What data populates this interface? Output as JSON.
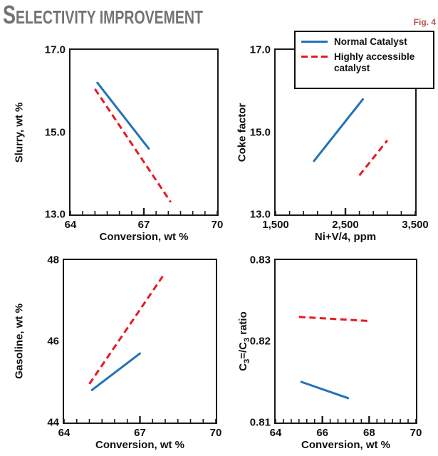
{
  "header": {
    "title_first_letter": "S",
    "title_rest": "ELECTIVITY IMPROVEMENT",
    "title_full": "Selectivity improvement",
    "fig_label": "Fig. 4"
  },
  "legend": {
    "position": "top-right",
    "items": [
      {
        "label": "Normal Catalyst",
        "line_style": "solid",
        "color": "#2273b9"
      },
      {
        "label": "Highly accessible catalyst",
        "line_style": "dashed",
        "color": "#e8191f"
      }
    ]
  },
  "colors": {
    "normal_catalyst": "#2273b9",
    "accessible_catalyst": "#e8191f",
    "axis": "#1a1a1a",
    "title_gray": "#737373",
    "fig_label_red": "#b5544c"
  },
  "chart_data": [
    {
      "type": "line",
      "title": "",
      "ylabel": "Slurry, wt %",
      "xlabel": "Conversion, wt %",
      "xlim": [
        64,
        70
      ],
      "ylim": [
        13.0,
        17.0
      ],
      "grid": false,
      "xticks": [
        {
          "v": 64,
          "label": "64"
        },
        {
          "v": 67,
          "label": "67"
        },
        {
          "v": 70,
          "label": "70"
        }
      ],
      "yticks": [
        {
          "v": 17.0,
          "label": "17.0"
        },
        {
          "v": 15.0,
          "label": "15.0"
        },
        {
          "v": 13.0,
          "label": "13.0"
        }
      ],
      "minor_x_step": 0.5,
      "major_interior_xticks": [
        67
      ],
      "series": [
        {
          "name": "Normal Catalyst",
          "style": "solid",
          "color": "#2273b9",
          "points": [
            [
              65.1,
              16.2
            ],
            [
              67.2,
              14.6
            ]
          ]
        },
        {
          "name": "Highly accessible catalyst",
          "style": "dashed",
          "color": "#e8191f",
          "points": [
            [
              65.0,
              16.05
            ],
            [
              68.1,
              13.3
            ]
          ]
        }
      ]
    },
    {
      "type": "line",
      "title": "",
      "ylabel": "Coke factor",
      "xlabel": "Ni+V/4, ppm",
      "xlim": [
        1500,
        3500
      ],
      "ylim": [
        13.0,
        17.0
      ],
      "grid": false,
      "xticks": [
        {
          "v": 1500,
          "label": "1,500"
        },
        {
          "v": 2500,
          "label": "2,500"
        },
        {
          "v": 3500,
          "label": "3,500"
        }
      ],
      "yticks": [
        {
          "v": 17.0,
          "label": "17.0"
        },
        {
          "v": 15.0,
          "label": "15.0"
        },
        {
          "v": 13.0,
          "label": "13.0"
        }
      ],
      "minor_x_step": 200,
      "major_interior_xticks": [
        2500
      ],
      "series": [
        {
          "name": "Normal Catalyst",
          "style": "solid",
          "color": "#2273b9",
          "points": [
            [
              2050,
              14.3
            ],
            [
              2750,
              15.8
            ]
          ]
        },
        {
          "name": "Highly accessible catalyst",
          "style": "dashed",
          "color": "#e8191f",
          "points": [
            [
              2700,
              13.95
            ],
            [
              3100,
              14.8
            ]
          ]
        }
      ]
    },
    {
      "type": "line",
      "title": "",
      "ylabel": "Gasoline, wt %",
      "xlabel": "Conversion, wt %",
      "xlim": [
        64,
        70
      ],
      "ylim": [
        44,
        48
      ],
      "grid": false,
      "xticks": [
        {
          "v": 64,
          "label": "64"
        },
        {
          "v": 67,
          "label": "67"
        },
        {
          "v": 70,
          "label": "70"
        }
      ],
      "yticks": [
        {
          "v": 48,
          "label": "48"
        },
        {
          "v": 46,
          "label": "46"
        },
        {
          "v": 44,
          "label": "44"
        }
      ],
      "minor_x_step": 0.5,
      "major_interior_xticks": [
        67
      ],
      "series": [
        {
          "name": "Normal Catalyst",
          "style": "solid",
          "color": "#2273b9",
          "points": [
            [
              65.1,
              44.8
            ],
            [
              67.0,
              45.7
            ]
          ]
        },
        {
          "name": "Highly accessible catalyst",
          "style": "dashed",
          "color": "#e8191f",
          "points": [
            [
              65.0,
              44.95
            ],
            [
              67.9,
              47.6
            ]
          ]
        }
      ]
    },
    {
      "type": "line",
      "title": "",
      "ylabel": "C3=/C3 ratio",
      "ylabel_parts": {
        "p1": "C",
        "s1": "3",
        "p2": "=/C",
        "s2": "3",
        "p3": " ratio"
      },
      "xlabel": "Conversion, wt %",
      "xlim": [
        64,
        70
      ],
      "ylim": [
        0.81,
        0.83
      ],
      "grid": false,
      "xticks": [
        {
          "v": 64,
          "label": "64"
        },
        {
          "v": 66,
          "label": "66"
        },
        {
          "v": 68,
          "label": "68"
        },
        {
          "v": 70,
          "label": "70"
        }
      ],
      "yticks": [
        {
          "v": 0.83,
          "label": "0.83"
        },
        {
          "v": 0.82,
          "label": "0.82"
        },
        {
          "v": 0.81,
          "label": "0.81"
        }
      ],
      "minor_x_step": 0.3333,
      "major_interior_xticks": [
        66,
        68
      ],
      "series": [
        {
          "name": "Normal Catalyst",
          "style": "solid",
          "color": "#2273b9",
          "points": [
            [
              65.1,
              0.815
            ],
            [
              67.1,
              0.813
            ]
          ]
        },
        {
          "name": "Highly accessible catalyst",
          "style": "dashed",
          "color": "#e8191f",
          "points": [
            [
              65.0,
              0.823
            ],
            [
              68.0,
              0.8225
            ]
          ]
        }
      ]
    }
  ]
}
